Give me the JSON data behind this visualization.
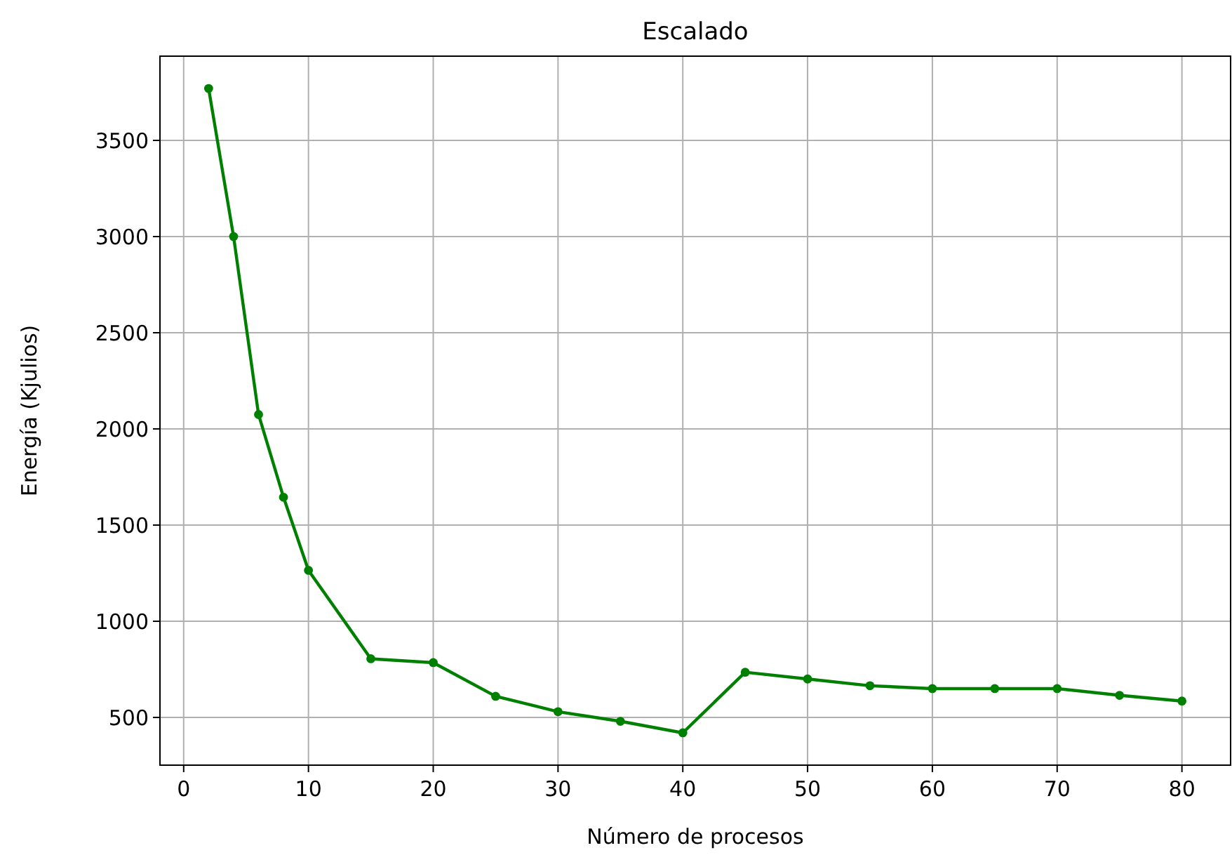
{
  "chart_data": {
    "type": "line",
    "title": "Escalado",
    "xlabel": "Número de procesos",
    "ylabel": "Energía (Kjulios)",
    "x": [
      2,
      4,
      6,
      8,
      10,
      15,
      20,
      25,
      30,
      35,
      40,
      45,
      50,
      55,
      60,
      65,
      70,
      75,
      80
    ],
    "series": [
      {
        "color": "#008000",
        "values": [
          3770,
          3000,
          2075,
          1645,
          1265,
          805,
          785,
          610,
          530,
          480,
          420,
          735,
          700,
          665,
          650,
          650,
          650,
          615,
          585
        ]
      }
    ],
    "xlim": [
      -1.9,
      83.9
    ],
    "ylim": [
      252,
      3938
    ],
    "xticks": [
      0,
      10,
      20,
      30,
      40,
      50,
      60,
      70,
      80
    ],
    "yticks": [
      500,
      1000,
      1500,
      2000,
      2500,
      3000,
      3500
    ],
    "grid": true,
    "marker": "circle",
    "line_style": "solid"
  }
}
